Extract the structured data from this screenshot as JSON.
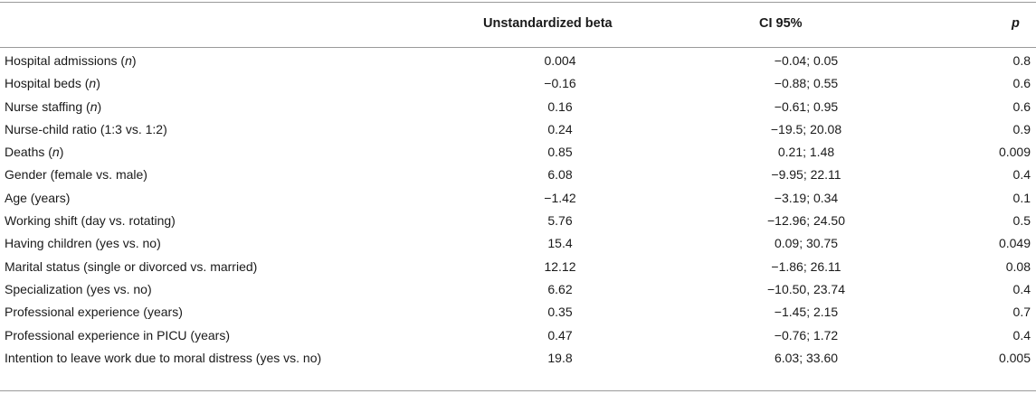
{
  "table": {
    "headers": {
      "variable": "",
      "beta": "Unstandardized beta",
      "ci": "CI 95%",
      "p": "p"
    },
    "rows": [
      {
        "label": "Hospital admissions",
        "italic": "n",
        "beta": "0.004",
        "ci": "−0.04; 0.05",
        "p": "0.8"
      },
      {
        "label": "Hospital beds",
        "italic": "n",
        "beta": "−0.16",
        "ci": "−0.88; 0.55",
        "p": "0.6"
      },
      {
        "label": "Nurse staffing",
        "italic": "n",
        "beta": "0.16",
        "ci": "−0.61; 0.95",
        "p": "0.6"
      },
      {
        "label": "Nurse-child ratio (1:3 vs. 1:2)",
        "italic": "",
        "beta": "0.24",
        "ci": "−19.5; 20.08",
        "p": "0.9"
      },
      {
        "label": "Deaths",
        "italic": "n",
        "beta": "0.85",
        "ci": "0.21; 1.48",
        "p": "0.009"
      },
      {
        "label": "Gender (female vs. male)",
        "italic": "",
        "beta": "6.08",
        "ci": "−9.95; 22.11",
        "p": "0.4"
      },
      {
        "label": "Age (years)",
        "italic": "",
        "beta": "−1.42",
        "ci": "−3.19; 0.34",
        "p": "0.1"
      },
      {
        "label": "Working shift (day vs. rotating)",
        "italic": "",
        "beta": "5.76",
        "ci": "−12.96; 24.50",
        "p": "0.5"
      },
      {
        "label": "Having children (yes vs. no)",
        "italic": "",
        "beta": "15.4",
        "ci": "0.09; 30.75",
        "p": "0.049"
      },
      {
        "label": "Marital status (single or divorced vs. married)",
        "italic": "",
        "beta": "12.12",
        "ci": "−1.86; 26.11",
        "p": "0.08"
      },
      {
        "label": "Specialization (yes vs. no)",
        "italic": "",
        "beta": "6.62",
        "ci": "−10.50, 23.74",
        "p": "0.4"
      },
      {
        "label": "Professional experience (years)",
        "italic": "",
        "beta": "0.35",
        "ci": "−1.45; 2.15",
        "p": "0.7"
      },
      {
        "label": "Professional experience in PICU (years)",
        "italic": "",
        "beta": "0.47",
        "ci": "−0.76; 1.72",
        "p": "0.4"
      },
      {
        "label": "Intention to leave work due to moral distress (yes vs. no)",
        "italic": "",
        "beta": "19.8",
        "ci": "6.03; 33.60",
        "p": "0.005"
      }
    ]
  }
}
